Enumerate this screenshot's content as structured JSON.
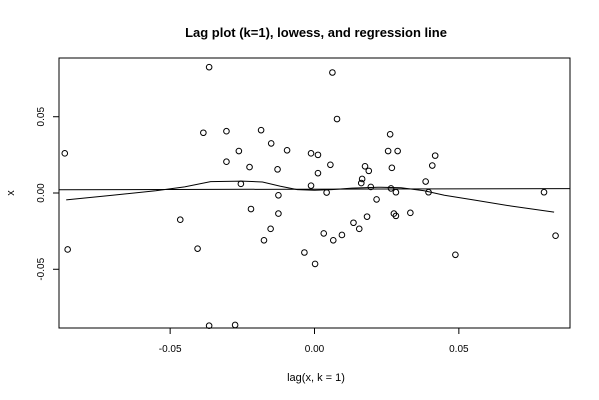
{
  "chart_data": {
    "type": "scatter",
    "title": "Lag plot (k=1), lowess, and regression line",
    "xlabel": "lag(x, k = 1)",
    "ylabel": "x",
    "xlim": [
      -0.0885,
      0.0885
    ],
    "ylim": [
      -0.0885,
      0.0885
    ],
    "x_ticks": [
      -0.05,
      0.0,
      0.05
    ],
    "x_tick_labels": [
      "-0.05",
      "0.00",
      "0.05"
    ],
    "y_ticks": [
      -0.05,
      0.0,
      0.05
    ],
    "y_tick_labels": [
      "-0.05",
      "0.00",
      "0.05"
    ],
    "grid": false,
    "points": [
      {
        "x": -0.0865,
        "y": 0.026
      },
      {
        "x": -0.0855,
        "y": -0.037
      },
      {
        "x": -0.0465,
        "y": -0.0175
      },
      {
        "x": -0.0405,
        "y": -0.0365
      },
      {
        "x": -0.0385,
        "y": 0.0395
      },
      {
        "x": -0.0365,
        "y": 0.0825
      },
      {
        "x": -0.0365,
        "y": -0.087
      },
      {
        "x": -0.0305,
        "y": 0.0405
      },
      {
        "x": -0.0305,
        "y": 0.0205
      },
      {
        "x": -0.0275,
        "y": -0.0865
      },
      {
        "x": -0.0262,
        "y": 0.0275
      },
      {
        "x": -0.0255,
        "y": 0.006
      },
      {
        "x": -0.0225,
        "y": 0.017
      },
      {
        "x": -0.022,
        "y": -0.0105
      },
      {
        "x": -0.0185,
        "y": 0.0412
      },
      {
        "x": -0.0175,
        "y": -0.031
      },
      {
        "x": -0.015,
        "y": 0.0325
      },
      {
        "x": -0.0152,
        "y": -0.0235
      },
      {
        "x": -0.0128,
        "y": 0.0155
      },
      {
        "x": -0.0125,
        "y": -0.0015
      },
      {
        "x": -0.0125,
        "y": -0.0135
      },
      {
        "x": -0.0095,
        "y": 0.028
      },
      {
        "x": -0.0035,
        "y": -0.039
      },
      {
        "x": -0.0012,
        "y": 0.026
      },
      {
        "x": -0.0012,
        "y": 0.0048
      },
      {
        "x": 0.0002,
        "y": -0.0465
      },
      {
        "x": 0.0012,
        "y": 0.025
      },
      {
        "x": 0.0012,
        "y": 0.013
      },
      {
        "x": 0.0032,
        "y": -0.0265
      },
      {
        "x": 0.0042,
        "y": 0.0003
      },
      {
        "x": 0.0055,
        "y": 0.0185
      },
      {
        "x": 0.0062,
        "y": 0.079
      },
      {
        "x": 0.0065,
        "y": -0.031
      },
      {
        "x": 0.0078,
        "y": 0.0485
      },
      {
        "x": 0.0095,
        "y": -0.0275
      },
      {
        "x": 0.0135,
        "y": -0.0195
      },
      {
        "x": 0.0155,
        "y": -0.0235
      },
      {
        "x": 0.0162,
        "y": 0.0065
      },
      {
        "x": 0.0165,
        "y": 0.0092
      },
      {
        "x": 0.0175,
        "y": 0.0175
      },
      {
        "x": 0.0182,
        "y": -0.0155
      },
      {
        "x": 0.0188,
        "y": 0.0145
      },
      {
        "x": 0.0195,
        "y": 0.004
      },
      {
        "x": 0.0215,
        "y": -0.0042
      },
      {
        "x": 0.0255,
        "y": 0.0275
      },
      {
        "x": 0.0262,
        "y": 0.0385
      },
      {
        "x": 0.0265,
        "y": 0.003
      },
      {
        "x": 0.0268,
        "y": 0.0165
      },
      {
        "x": 0.0275,
        "y": -0.0135
      },
      {
        "x": 0.0282,
        "y": -0.015
      },
      {
        "x": 0.0282,
        "y": 0.0005
      },
      {
        "x": 0.0288,
        "y": 0.0275
      },
      {
        "x": 0.0332,
        "y": -0.013
      },
      {
        "x": 0.0385,
        "y": 0.0075
      },
      {
        "x": 0.0395,
        "y": 0.0005
      },
      {
        "x": 0.0408,
        "y": 0.018
      },
      {
        "x": 0.0418,
        "y": 0.0245
      },
      {
        "x": 0.0488,
        "y": -0.0405
      },
      {
        "x": 0.0795,
        "y": 0.0005
      },
      {
        "x": 0.0835,
        "y": -0.028
      }
    ],
    "lowess": [
      [
        -0.086,
        -0.0045
      ],
      [
        -0.07,
        -0.0015
      ],
      [
        -0.055,
        0.0015
      ],
      [
        -0.045,
        0.004
      ],
      [
        -0.036,
        0.0075
      ],
      [
        -0.025,
        0.0078
      ],
      [
        -0.018,
        0.0072
      ],
      [
        -0.012,
        0.0045
      ],
      [
        -0.006,
        0.0022
      ],
      [
        0.0,
        0.0018
      ],
      [
        0.006,
        0.0022
      ],
      [
        0.013,
        0.0032
      ],
      [
        0.022,
        0.0038
      ],
      [
        0.03,
        0.0035
      ],
      [
        0.038,
        0.0015
      ],
      [
        0.045,
        -0.0015
      ],
      [
        0.055,
        -0.0045
      ],
      [
        0.068,
        -0.0085
      ],
      [
        0.083,
        -0.0125
      ]
    ],
    "regression": {
      "intercept": 0.0025,
      "slope": 0.004
    }
  }
}
